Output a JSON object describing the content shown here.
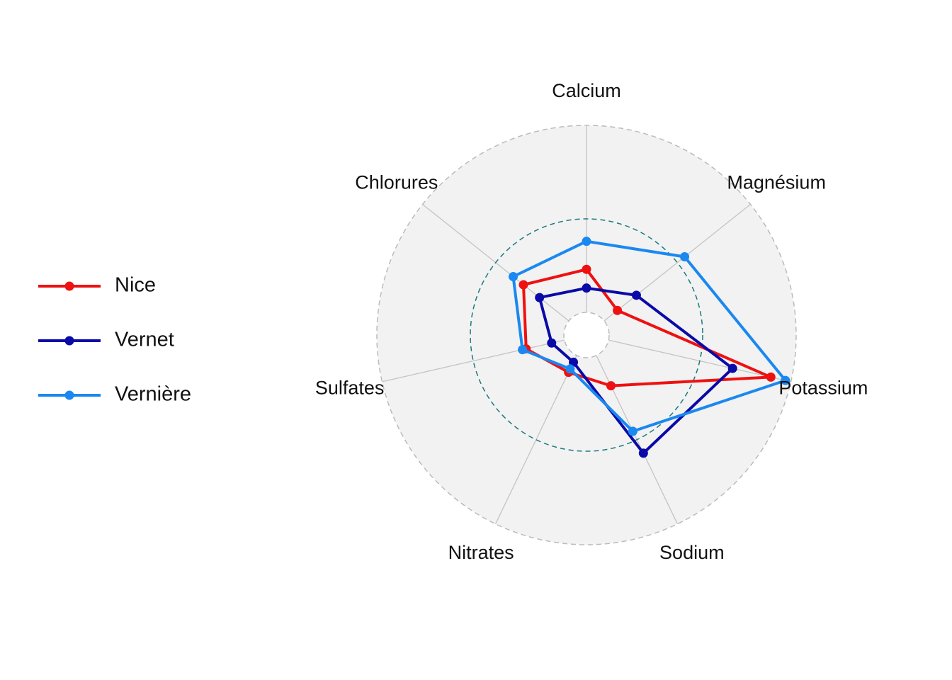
{
  "chart_data": {
    "type": "radar",
    "axes": [
      "Calcium",
      "Magnésium",
      "Potassium",
      "Sodium",
      "Nitrates",
      "Sulfates",
      "Chlorures"
    ],
    "rlim": [
      0,
      1
    ],
    "grid_rings": [
      0,
      0.5,
      1
    ],
    "grid": true,
    "legend_position": "left",
    "series": [
      {
        "name": "Nice",
        "color": "#ee1111",
        "values": [
          0.23,
          0.09,
          0.89,
          0.18,
          0.1,
          0.21,
          0.31
        ]
      },
      {
        "name": "Vernet",
        "color": "#0a0aa8",
        "values": [
          0.13,
          0.22,
          0.68,
          0.58,
          0.04,
          0.07,
          0.2
        ]
      },
      {
        "name": "Vernière",
        "color": "#1a88f0",
        "values": [
          0.38,
          0.55,
          0.97,
          0.45,
          0.08,
          0.23,
          0.38
        ]
      }
    ]
  },
  "colors": {
    "panel_fill": "#f2f2f2",
    "outer_ring": "#bbbbbb",
    "mid_ring": "#1a7a7e",
    "inner_ring": "#bbbbbb",
    "spoke": "#c4c4c4"
  }
}
